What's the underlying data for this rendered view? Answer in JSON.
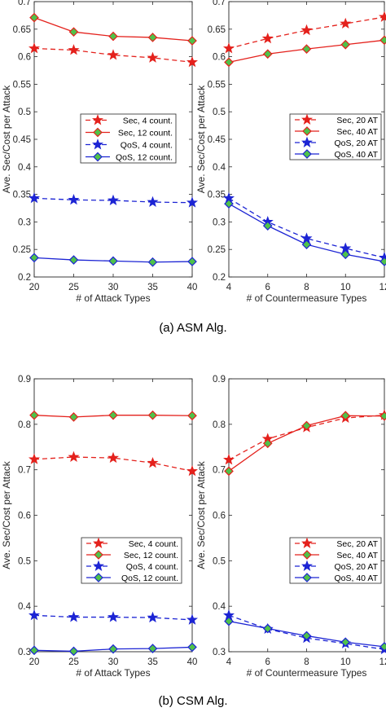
{
  "captions": {
    "top": "(a) ASM Alg.",
    "bottom": "(b) CSM Alg."
  },
  "colors": {
    "sec": "#e4211c",
    "qos": "#1c24d4",
    "sec_marker_fill": "#e4211c",
    "diamond_fill": "#4fc24a",
    "axis": "#262626"
  },
  "chart_data": [
    {
      "type": "line",
      "panel": "a-left",
      "xlabel": "# of Attack Types",
      "ylabel": "Ave. Sec/Cost per Attack",
      "x": [
        20,
        25,
        30,
        35,
        40
      ],
      "xlim": [
        20,
        40
      ],
      "ylim": [
        0.2,
        0.7
      ],
      "xticks": [
        "20",
        "25",
        "30",
        "35",
        "40"
      ],
      "yticks": [
        "0.2",
        "0.25",
        "0.3",
        "0.35",
        "0.4",
        "0.45",
        "0.5",
        "0.55",
        "0.6",
        "0.65",
        "0.7"
      ],
      "legend_position": "center",
      "series": [
        {
          "name": "Sec, 4 count.",
          "color": "sec",
          "dash": true,
          "marker": "star",
          "values": [
            0.615,
            0.612,
            0.603,
            0.598,
            0.59
          ]
        },
        {
          "name": "Sec, 12 count.",
          "color": "sec",
          "dash": false,
          "marker": "diamond",
          "values": [
            0.671,
            0.645,
            0.637,
            0.635,
            0.629
          ]
        },
        {
          "name": "QoS, 4 count.",
          "color": "qos",
          "dash": true,
          "marker": "star",
          "values": [
            0.343,
            0.34,
            0.339,
            0.336,
            0.335
          ]
        },
        {
          "name": "QoS, 12 count.",
          "color": "qos",
          "dash": false,
          "marker": "diamond",
          "values": [
            0.235,
            0.231,
            0.229,
            0.227,
            0.228
          ]
        }
      ]
    },
    {
      "type": "line",
      "panel": "a-right",
      "xlabel": "# of Countermeasure Types",
      "ylabel": "Ave. Sec/Cost per Attack",
      "x": [
        4,
        6,
        8,
        10,
        12
      ],
      "xlim": [
        4,
        12
      ],
      "ylim": [
        0.2,
        0.7
      ],
      "xticks": [
        "4",
        "6",
        "8",
        "10",
        "12"
      ],
      "yticks": [
        "0.2",
        "0.25",
        "0.3",
        "0.35",
        "0.4",
        "0.45",
        "0.5",
        "0.55",
        "0.6",
        "0.65",
        "0.7"
      ],
      "legend_position": "center",
      "series": [
        {
          "name": "Sec, 20 AT",
          "color": "sec",
          "dash": true,
          "marker": "star",
          "values": [
            0.615,
            0.633,
            0.648,
            0.66,
            0.672
          ]
        },
        {
          "name": "Sec, 40 AT",
          "color": "sec",
          "dash": false,
          "marker": "diamond",
          "values": [
            0.59,
            0.605,
            0.614,
            0.622,
            0.63
          ]
        },
        {
          "name": "QoS, 20 AT",
          "color": "qos",
          "dash": true,
          "marker": "star",
          "values": [
            0.343,
            0.3,
            0.27,
            0.252,
            0.235
          ]
        },
        {
          "name": "QoS, 40 AT",
          "color": "qos",
          "dash": false,
          "marker": "diamond",
          "values": [
            0.333,
            0.293,
            0.259,
            0.241,
            0.228
          ]
        }
      ]
    },
    {
      "type": "line",
      "panel": "b-left",
      "xlabel": "# of Attack Types",
      "ylabel": "Ave. Sec/Cost per Attack",
      "x": [
        20,
        25,
        30,
        35,
        40
      ],
      "xlim": [
        20,
        40
      ],
      "ylim": [
        0.3,
        0.9
      ],
      "xticks": [
        "20",
        "25",
        "30",
        "35",
        "40"
      ],
      "yticks": [
        "0.3",
        "0.4",
        "0.5",
        "0.6",
        "0.7",
        "0.8",
        "0.9"
      ],
      "legend_position": "center-right",
      "series": [
        {
          "name": "Sec, 4 count.",
          "color": "sec",
          "dash": true,
          "marker": "star",
          "values": [
            0.723,
            0.728,
            0.726,
            0.715,
            0.697
          ]
        },
        {
          "name": "Sec, 12 count.",
          "color": "sec",
          "dash": false,
          "marker": "diamond",
          "values": [
            0.82,
            0.816,
            0.82,
            0.82,
            0.819
          ]
        },
        {
          "name": "QoS, 4 count.",
          "color": "qos",
          "dash": true,
          "marker": "star",
          "values": [
            0.38,
            0.376,
            0.376,
            0.375,
            0.37
          ]
        },
        {
          "name": "QoS, 12 count.",
          "color": "qos",
          "dash": false,
          "marker": "diamond",
          "values": [
            0.303,
            0.301,
            0.306,
            0.307,
            0.31
          ]
        }
      ]
    },
    {
      "type": "line",
      "panel": "b-right",
      "xlabel": "# of Countermeasure Types",
      "ylabel": "Ave. Sec/Cost per Attack",
      "x": [
        4,
        6,
        8,
        10,
        12
      ],
      "xlim": [
        4,
        12
      ],
      "ylim": [
        0.3,
        0.9
      ],
      "xticks": [
        "4",
        "6",
        "8",
        "10",
        "12"
      ],
      "yticks": [
        "0.3",
        "0.4",
        "0.5",
        "0.6",
        "0.7",
        "0.8",
        "0.9"
      ],
      "legend_position": "center-right",
      "series": [
        {
          "name": "Sec, 20 AT",
          "color": "sec",
          "dash": true,
          "marker": "star",
          "values": [
            0.722,
            0.768,
            0.793,
            0.814,
            0.82
          ]
        },
        {
          "name": "Sec, 40 AT",
          "color": "sec",
          "dash": false,
          "marker": "diamond",
          "values": [
            0.697,
            0.758,
            0.797,
            0.819,
            0.818
          ]
        },
        {
          "name": "QoS, 20 AT",
          "color": "qos",
          "dash": true,
          "marker": "star",
          "values": [
            0.38,
            0.35,
            0.33,
            0.318,
            0.305
          ]
        },
        {
          "name": "QoS, 40 AT",
          "color": "qos",
          "dash": false,
          "marker": "diamond",
          "values": [
            0.367,
            0.351,
            0.335,
            0.321,
            0.311
          ]
        }
      ]
    }
  ]
}
